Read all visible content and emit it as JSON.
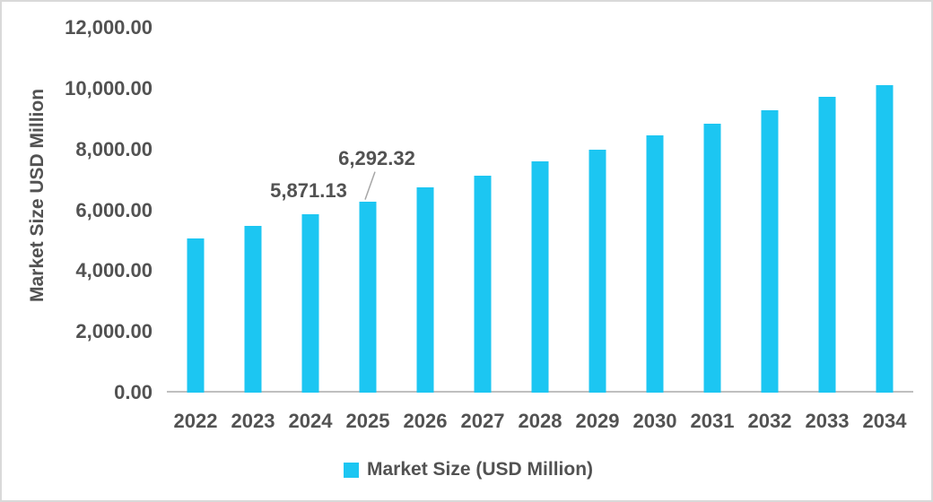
{
  "chart_data": {
    "type": "bar",
    "title": "",
    "categories": [
      "2022",
      "2023",
      "2024",
      "2025",
      "2026",
      "2027",
      "2028",
      "2029",
      "2030",
      "2031",
      "2032",
      "2033",
      "2034"
    ],
    "values": [
      5080,
      5470,
      5871.13,
      6292.32,
      6740,
      7150,
      7600,
      8000,
      8450,
      8860,
      9280,
      9720,
      10120
    ],
    "series": [
      {
        "name": "Market Size (USD Million)",
        "values": [
          5080,
          5470,
          5871.13,
          6292.32,
          6740,
          7150,
          7600,
          8000,
          8450,
          8860,
          9280,
          9720,
          10120
        ]
      }
    ],
    "xlabel": "",
    "ylabel": "Market Size USD Million",
    "ylim": [
      0,
      12000
    ],
    "ytick_step": 2000,
    "ytick_labels": [
      "0.00",
      "2,000.00",
      "4,000.00",
      "6,000.00",
      "8,000.00",
      "10,000.00",
      "12,000.00"
    ],
    "grid": false,
    "legend_position": "bottom",
    "data_labels": [
      {
        "category": "2024",
        "text": "5,871.13",
        "dx": -2,
        "rise": 15,
        "leader": false
      },
      {
        "category": "2025",
        "text": "6,292.32",
        "dx": 10,
        "rise": 37,
        "leader": true
      }
    ]
  },
  "axes": {
    "y_title": "Market Size USD Million"
  },
  "legend": {
    "label": "Market Size (USD Million)"
  },
  "colors": {
    "bar": "#1cc6f2",
    "text": "#525252",
    "axis_line": "#bfbfbf",
    "leader_line": "#a6a6a6",
    "border": "#d9d9d9"
  }
}
